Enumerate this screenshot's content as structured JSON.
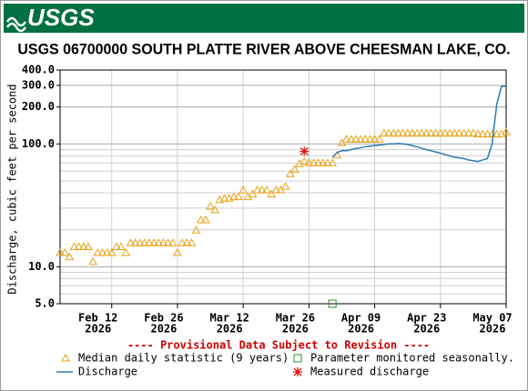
{
  "logo": "USGS",
  "chart_data": {
    "type": "line",
    "title": "USGS 06700000 SOUTH PLATTE RIVER ABOVE CHEESMAN LAKE, CO.",
    "y_label": "Discharge, cubic feet per second",
    "annotation": "---- Provisional Data Subject to Revision ----",
    "log_y": true,
    "grid": true,
    "ylim": [
      5,
      400
    ],
    "yticks": [
      {
        "value": 5,
        "label": "5.0"
      },
      {
        "value": 10,
        "label": "10.0"
      },
      {
        "value": 100,
        "label": "100.0"
      },
      {
        "value": 200,
        "label": "200.0"
      },
      {
        "value": 300,
        "label": "300.0"
      },
      {
        "value": 400,
        "label": "400.0"
      }
    ],
    "yminorticks": [
      6,
      7,
      8,
      9,
      20,
      30,
      40,
      50,
      60,
      70,
      80,
      90
    ],
    "xlim": [
      "2026-02-01",
      "2026-05-07"
    ],
    "xticks": [
      {
        "value": "2026-02-12",
        "label": [
          "Feb 12",
          "2026"
        ]
      },
      {
        "value": "2026-02-26",
        "label": [
          "Feb 26",
          "2026"
        ]
      },
      {
        "value": "2026-03-12",
        "label": [
          "Mar 12",
          "2026"
        ]
      },
      {
        "value": "2026-03-26",
        "label": [
          "Mar 26",
          "2026"
        ]
      },
      {
        "value": "2026-04-09",
        "label": [
          "Apr 09",
          "2026"
        ]
      },
      {
        "value": "2026-04-23",
        "label": [
          "Apr 23",
          "2026"
        ]
      },
      {
        "value": "2026-05-07",
        "label": [
          "May 07",
          "2026"
        ]
      }
    ],
    "series": [
      {
        "name": "Median daily statistic (9 years)",
        "color": "#e8a317",
        "marker": "triangle",
        "x": [
          "2026-02-01",
          "2026-02-02",
          "2026-02-03",
          "2026-02-04",
          "2026-02-05",
          "2026-02-06",
          "2026-02-07",
          "2026-02-08",
          "2026-02-09",
          "2026-02-10",
          "2026-02-11",
          "2026-02-12",
          "2026-02-13",
          "2026-02-14",
          "2026-02-15",
          "2026-02-16",
          "2026-02-17",
          "2026-02-18",
          "2026-02-19",
          "2026-02-20",
          "2026-02-21",
          "2026-02-22",
          "2026-02-23",
          "2026-02-24",
          "2026-02-25",
          "2026-02-26",
          "2026-02-27",
          "2026-02-28",
          "2026-03-01",
          "2026-03-02",
          "2026-03-03",
          "2026-03-04",
          "2026-03-05",
          "2026-03-06",
          "2026-03-07",
          "2026-03-08",
          "2026-03-09",
          "2026-03-10",
          "2026-03-11",
          "2026-03-12",
          "2026-03-13",
          "2026-03-14",
          "2026-03-15",
          "2026-03-16",
          "2026-03-17",
          "2026-03-18",
          "2026-03-19",
          "2026-03-20",
          "2026-03-21",
          "2026-03-22",
          "2026-03-23",
          "2026-03-24",
          "2026-03-25",
          "2026-03-26",
          "2026-03-27",
          "2026-03-28",
          "2026-03-29",
          "2026-03-30",
          "2026-03-31",
          "2026-04-01",
          "2026-04-02",
          "2026-04-03",
          "2026-04-04",
          "2026-04-05",
          "2026-04-06",
          "2026-04-07",
          "2026-04-08",
          "2026-04-09",
          "2026-04-10",
          "2026-04-11",
          "2026-04-12",
          "2026-04-13",
          "2026-04-14",
          "2026-04-15",
          "2026-04-16",
          "2026-04-17",
          "2026-04-18",
          "2026-04-19",
          "2026-04-20",
          "2026-04-21",
          "2026-04-22",
          "2026-04-23",
          "2026-04-24",
          "2026-04-25",
          "2026-04-26",
          "2026-04-27",
          "2026-04-28",
          "2026-04-29",
          "2026-04-30",
          "2026-05-01",
          "2026-05-02",
          "2026-05-03",
          "2026-05-04",
          "2026-05-05",
          "2026-05-06",
          "2026-05-07"
        ],
        "values": [
          13,
          13,
          12,
          14.5,
          14.5,
          14.5,
          14.5,
          11,
          13,
          13,
          13,
          13,
          14.5,
          14.5,
          13,
          15.6,
          15.6,
          15.6,
          15.6,
          15.6,
          15.6,
          15.6,
          15.6,
          15.6,
          15.6,
          13,
          15.6,
          15.6,
          15.6,
          19.8,
          24,
          24,
          31,
          29,
          35,
          36,
          36,
          37,
          37,
          42,
          37,
          39,
          42,
          42,
          42,
          39,
          42,
          42,
          45,
          57,
          62,
          69,
          72,
          70,
          70,
          70,
          70,
          70,
          70,
          81,
          102,
          109,
          109,
          109,
          109,
          109,
          109,
          109,
          109,
          122,
          122,
          122,
          122,
          122,
          122,
          122,
          122,
          122,
          122,
          122,
          122,
          122,
          122,
          122,
          122,
          122,
          122,
          122,
          122,
          120,
          120,
          120,
          120,
          120,
          120,
          125
        ]
      },
      {
        "name": "Parameter monitored seasonally.",
        "color": "#2e8b2e",
        "marker": "square",
        "x": [
          "2026-03-31"
        ],
        "values": [
          5
        ]
      },
      {
        "name": "Discharge",
        "color": "#2a7ab0",
        "marker": "line",
        "x": [
          "2026-03-31",
          "2026-04-01",
          "2026-04-02",
          "2026-04-03",
          "2026-04-04",
          "2026-04-05",
          "2026-04-06",
          "2026-04-07",
          "2026-04-08",
          "2026-04-09",
          "2026-04-10",
          "2026-04-11",
          "2026-04-12",
          "2026-04-13",
          "2026-04-14",
          "2026-04-15",
          "2026-04-16",
          "2026-04-17",
          "2026-04-18",
          "2026-04-19",
          "2026-04-20",
          "2026-04-21",
          "2026-04-22",
          "2026-04-23",
          "2026-04-24",
          "2026-04-25",
          "2026-04-26",
          "2026-04-27",
          "2026-04-28",
          "2026-04-29",
          "2026-04-30",
          "2026-05-01",
          "2026-05-02",
          "2026-05-03",
          "2026-05-04",
          "2026-05-05",
          "2026-05-06",
          "2026-05-07"
        ],
        "values": [
          78,
          85,
          88,
          88,
          90,
          92,
          93,
          95,
          96,
          97,
          98,
          99,
          100,
          100,
          101,
          100,
          99,
          97,
          95,
          92,
          90,
          88,
          86,
          84,
          82,
          80,
          78,
          77,
          76,
          74,
          73,
          72,
          74,
          76,
          100,
          210,
          295,
          295
        ]
      },
      {
        "name": "Measured discharge",
        "color": "#dd1111",
        "marker": "star",
        "x": [
          "2026-03-25"
        ],
        "values": [
          87
        ]
      }
    ]
  }
}
